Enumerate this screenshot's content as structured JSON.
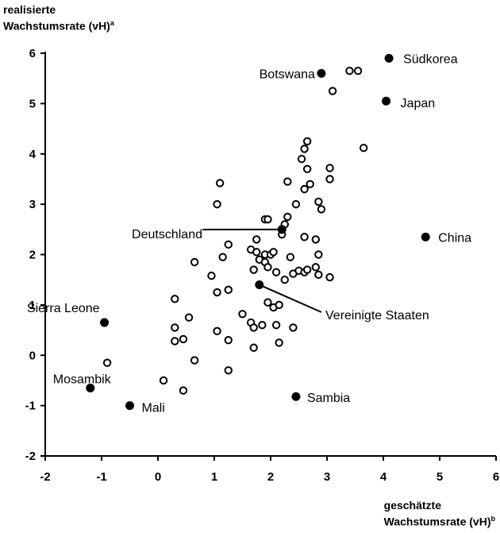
{
  "chart_data": {
    "type": "scatter",
    "ylabel_line1": "realisierte",
    "ylabel_line2": "Wachstumsrate (vH)",
    "ylabel_sup": "a",
    "xlabel_line1": "geschätzte",
    "xlabel_line2": "Wachstumsrate (vH)",
    "xlabel_sup": "b",
    "xlim": [
      -2,
      6
    ],
    "ylim": [
      -2,
      6
    ],
    "xticks": [
      "-2",
      "-1",
      "0",
      "1",
      "2",
      "3",
      "4",
      "5",
      "6"
    ],
    "yticks": [
      "-2",
      "-1",
      "0",
      "1",
      "2",
      "3",
      "4",
      "5",
      "6"
    ],
    "labeled_points": [
      {
        "label": "Südkorea",
        "x": 4.1,
        "y": 5.9
      },
      {
        "label": "Botswana",
        "x": 2.9,
        "y": 5.6
      },
      {
        "label": "Japan",
        "x": 4.05,
        "y": 5.05
      },
      {
        "label": "China",
        "x": 4.75,
        "y": 2.35
      },
      {
        "label": "Deutschland",
        "x": 2.2,
        "y": 2.5
      },
      {
        "label": "Vereinigte Staaten",
        "x": 1.8,
        "y": 1.4
      },
      {
        "label": "Sierra Leone",
        "x": -0.95,
        "y": 0.65
      },
      {
        "label": "Mosambik",
        "x": -1.2,
        "y": -0.65
      },
      {
        "label": "Mali",
        "x": -0.5,
        "y": -1.0
      },
      {
        "label": "Sambia",
        "x": 2.45,
        "y": -0.82
      }
    ],
    "unlabeled_points": [
      [
        3.4,
        5.65
      ],
      [
        3.55,
        5.65
      ],
      [
        3.1,
        5.25
      ],
      [
        3.65,
        4.12
      ],
      [
        2.65,
        4.25
      ],
      [
        2.6,
        4.1
      ],
      [
        2.55,
        3.9
      ],
      [
        2.65,
        3.7
      ],
      [
        3.05,
        3.72
      ],
      [
        3.05,
        3.5
      ],
      [
        2.7,
        3.4
      ],
      [
        2.6,
        3.3
      ],
      [
        2.3,
        3.45
      ],
      [
        2.85,
        3.05
      ],
      [
        2.9,
        2.9
      ],
      [
        2.45,
        3.0
      ],
      [
        2.3,
        2.75
      ],
      [
        1.9,
        2.7
      ],
      [
        1.95,
        2.7
      ],
      [
        1.1,
        3.42
      ],
      [
        1.05,
        3.0
      ],
      [
        2.25,
        2.6
      ],
      [
        2.2,
        2.4
      ],
      [
        1.75,
        2.3
      ],
      [
        2.6,
        2.35
      ],
      [
        2.8,
        2.3
      ],
      [
        1.25,
        2.2
      ],
      [
        1.15,
        1.95
      ],
      [
        0.65,
        1.85
      ],
      [
        0.95,
        1.58
      ],
      [
        1.65,
        2.1
      ],
      [
        1.75,
        2.05
      ],
      [
        1.9,
        2.0
      ],
      [
        2.0,
        2.0
      ],
      [
        2.05,
        2.05
      ],
      [
        1.8,
        1.9
      ],
      [
        1.9,
        1.85
      ],
      [
        2.35,
        1.95
      ],
      [
        1.95,
        1.75
      ],
      [
        1.7,
        1.7
      ],
      [
        2.1,
        1.65
      ],
      [
        2.25,
        1.5
      ],
      [
        2.4,
        1.62
      ],
      [
        2.5,
        1.68
      ],
      [
        2.6,
        1.65
      ],
      [
        2.65,
        1.7
      ],
      [
        2.8,
        1.75
      ],
      [
        2.85,
        1.6
      ],
      [
        3.05,
        1.55
      ],
      [
        2.85,
        2.0
      ],
      [
        1.25,
        1.3
      ],
      [
        1.05,
        1.25
      ],
      [
        1.95,
        1.05
      ],
      [
        2.05,
        0.95
      ],
      [
        2.15,
        1.0
      ],
      [
        0.3,
        1.12
      ],
      [
        0.55,
        0.75
      ],
      [
        0.3,
        0.55
      ],
      [
        0.45,
        0.32
      ],
      [
        0.3,
        0.28
      ],
      [
        1.5,
        0.82
      ],
      [
        1.65,
        0.65
      ],
      [
        1.7,
        0.55
      ],
      [
        1.85,
        0.6
      ],
      [
        2.1,
        0.6
      ],
      [
        2.4,
        0.55
      ],
      [
        1.05,
        0.48
      ],
      [
        1.25,
        0.3
      ],
      [
        1.7,
        0.15
      ],
      [
        2.15,
        0.25
      ],
      [
        0.65,
        -0.1
      ],
      [
        1.25,
        -0.3
      ],
      [
        0.1,
        -0.5
      ],
      [
        0.45,
        -0.7
      ],
      [
        -0.9,
        -0.15
      ]
    ]
  }
}
